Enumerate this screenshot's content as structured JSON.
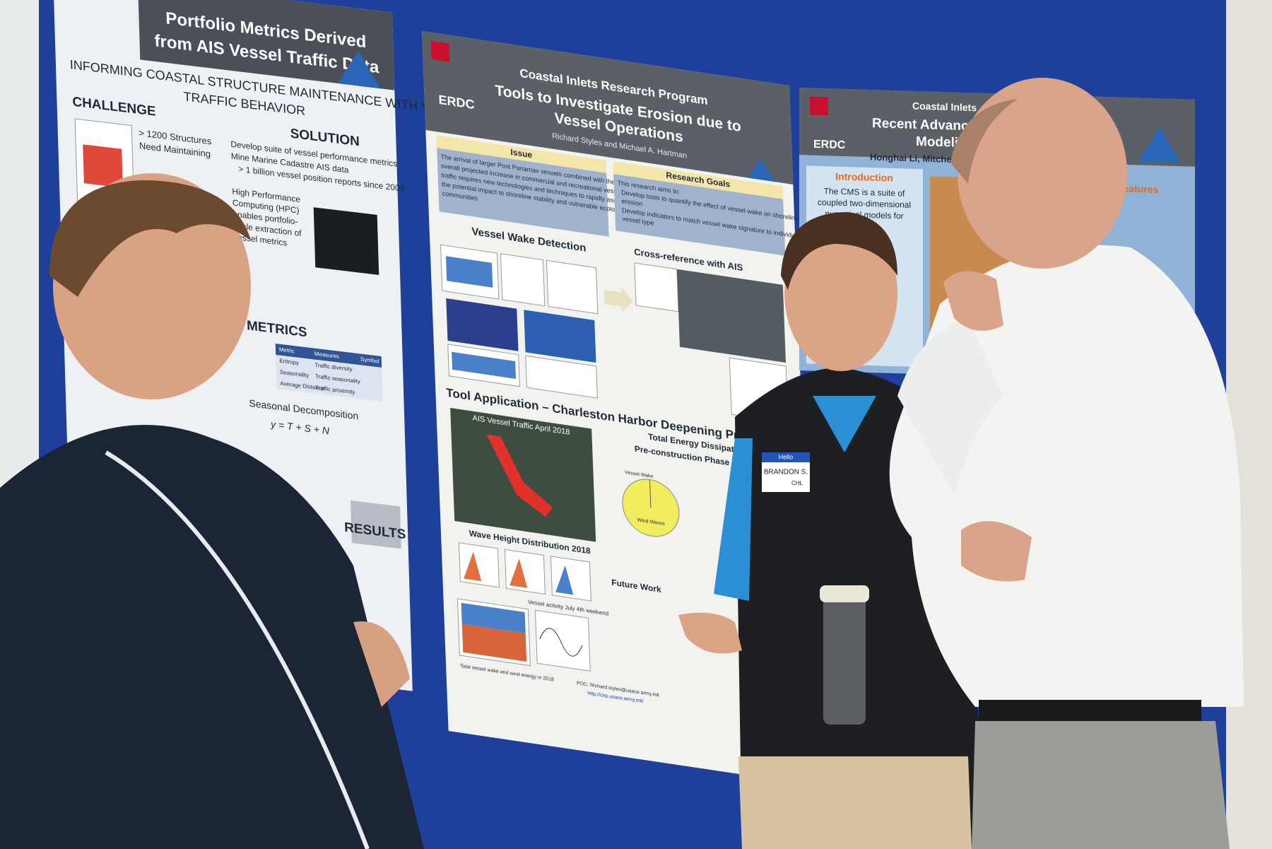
{
  "left_poster": {
    "title_line1": "Portfolio Metrics Derived",
    "title_line2": "from AIS Vessel Traffic Data",
    "subtitle_line1": "INFORMING COASTAL STRUCTURE MAINTENANCE WITH VESSEL",
    "subtitle_line2": "TRAFFIC BEHAVIOR",
    "challenge": "CHALLENGE",
    "challenge_text": [
      "> 1200 Structures",
      "Need Maintaining"
    ],
    "solution": "SOLUTION",
    "solution_bullets": [
      "Develop suite of vessel performance metrics",
      "Mine Marine Cadastre AIS data",
      "> 1 billion vessel position reports since 2009"
    ],
    "hpc_text": [
      "High Performance",
      "Computing (HPC)",
      "enables portfolio-",
      "scale extraction of",
      "vessel metrics"
    ],
    "metrics": "METRICS",
    "table_header": [
      "Metric",
      "Measures",
      "Symbol"
    ],
    "table_rows": [
      [
        "Entropy",
        "Traffic diversity"
      ],
      [
        "Seasonality",
        "Traffic seasonality"
      ],
      [
        "Average Distance",
        "Traffic proximity"
      ]
    ],
    "seasonal": "Seasonal Decomposition",
    "formula": "y = T + S + N",
    "results": "RESULTS"
  },
  "center_poster": {
    "program": "Coastal Inlets Research Program",
    "title_line1": "Tools to Investigate Erosion due to",
    "title_line2": "Vessel Operations",
    "authors": "Richard Styles and Michael A. Hartman",
    "erdc": "ERDC",
    "issue": "Issue",
    "issue_text": [
      "The arrival of larger Post Panamax vessels combined with the",
      "overall projected increase in commercial and recreational vessel",
      "traffic requires new technologies and techniques to rapidly assess",
      "the potential impact to shoreline stability and vulnerable ecological",
      "communities"
    ],
    "goals": "Research Goals",
    "goals_text": [
      "This research aims to:",
      "Develop tools to quantify the effect of vessel wake on shoreline",
      "erosion",
      "Develop indicators to match vessel wake signature to individual",
      "vessel type"
    ],
    "wake_detection": "Vessel Wake Detection",
    "cross_reference": "Cross-reference with AIS",
    "tool_application": "Tool Application – Charleston Harbor Deepening Pro",
    "map_title": "AIS Vessel Traffic April 2018",
    "energy_line1": "Total Energy Dissipated",
    "energy_line2": "Pre-construction Phase",
    "pie_labels": [
      "Vessel Wake",
      "Wind Waves"
    ],
    "wave_height": "Wave Height Distribution 2018",
    "july": "Vessel activity July 4th weekend",
    "future_work": "Future Work",
    "energy_caption": "Total vessel wake and wind energy in 2018",
    "poc": "POC: Richard.styles@usace.army.mil",
    "url": "http://cirp.usace.army.mil/"
  },
  "right_poster": {
    "program": "Coastal Inlets",
    "title_line1": "Recent Advanc",
    "title_line2": "Modeli",
    "authors": "Honghai Li, Mitche",
    "erdc": "ERDC",
    "introduction": "Introduction",
    "intro_text": [
      "The CMS is a suite of",
      "coupled two-dimensional",
      "numerical models for"
    ],
    "features": "Features"
  },
  "name_tag": {
    "hello": "Hello",
    "name": "BRANDON S.",
    "org": "CHL"
  }
}
